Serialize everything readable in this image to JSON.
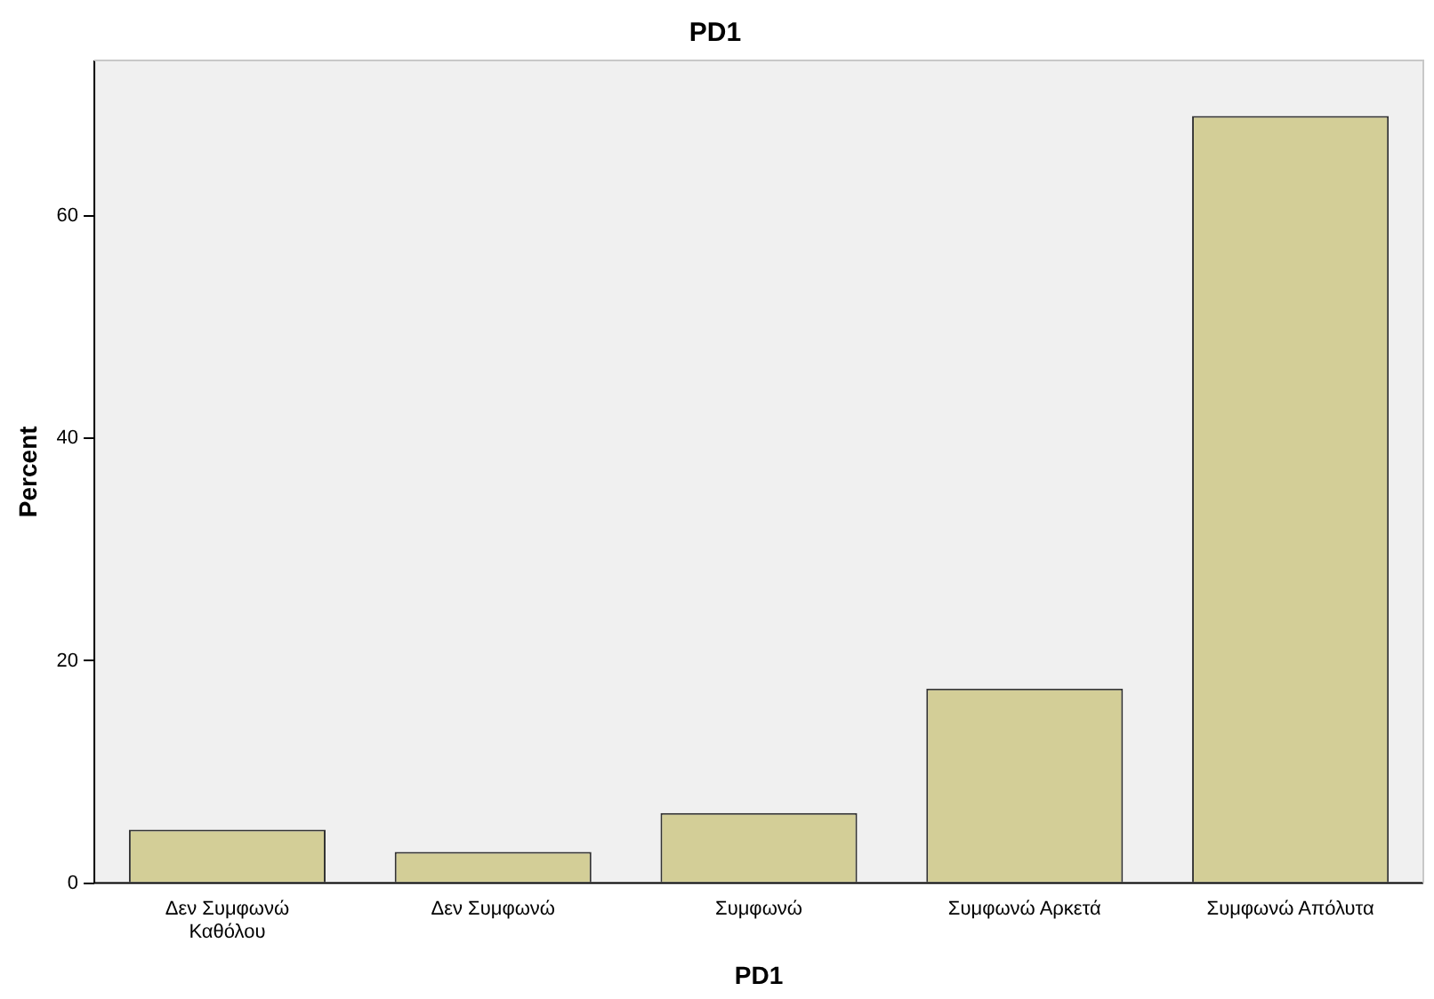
{
  "chart_data": {
    "type": "bar",
    "title": "PD1",
    "xlabel": "PD1",
    "ylabel": "Percent",
    "categories": [
      "Δεν Συμφωνώ Καθόλου",
      "Δεν Συμφωνώ",
      "Συμφωνώ",
      "Συμφωνώ Αρκετά",
      "Συμφωνώ Απόλυτα"
    ],
    "values": [
      4.8,
      2.8,
      6.3,
      17.5,
      69.0
    ],
    "color": "#d3ce97",
    "ylim": [
      0,
      74
    ],
    "yticks": [
      0,
      20,
      40,
      60
    ],
    "grid": false,
    "legend": false
  }
}
